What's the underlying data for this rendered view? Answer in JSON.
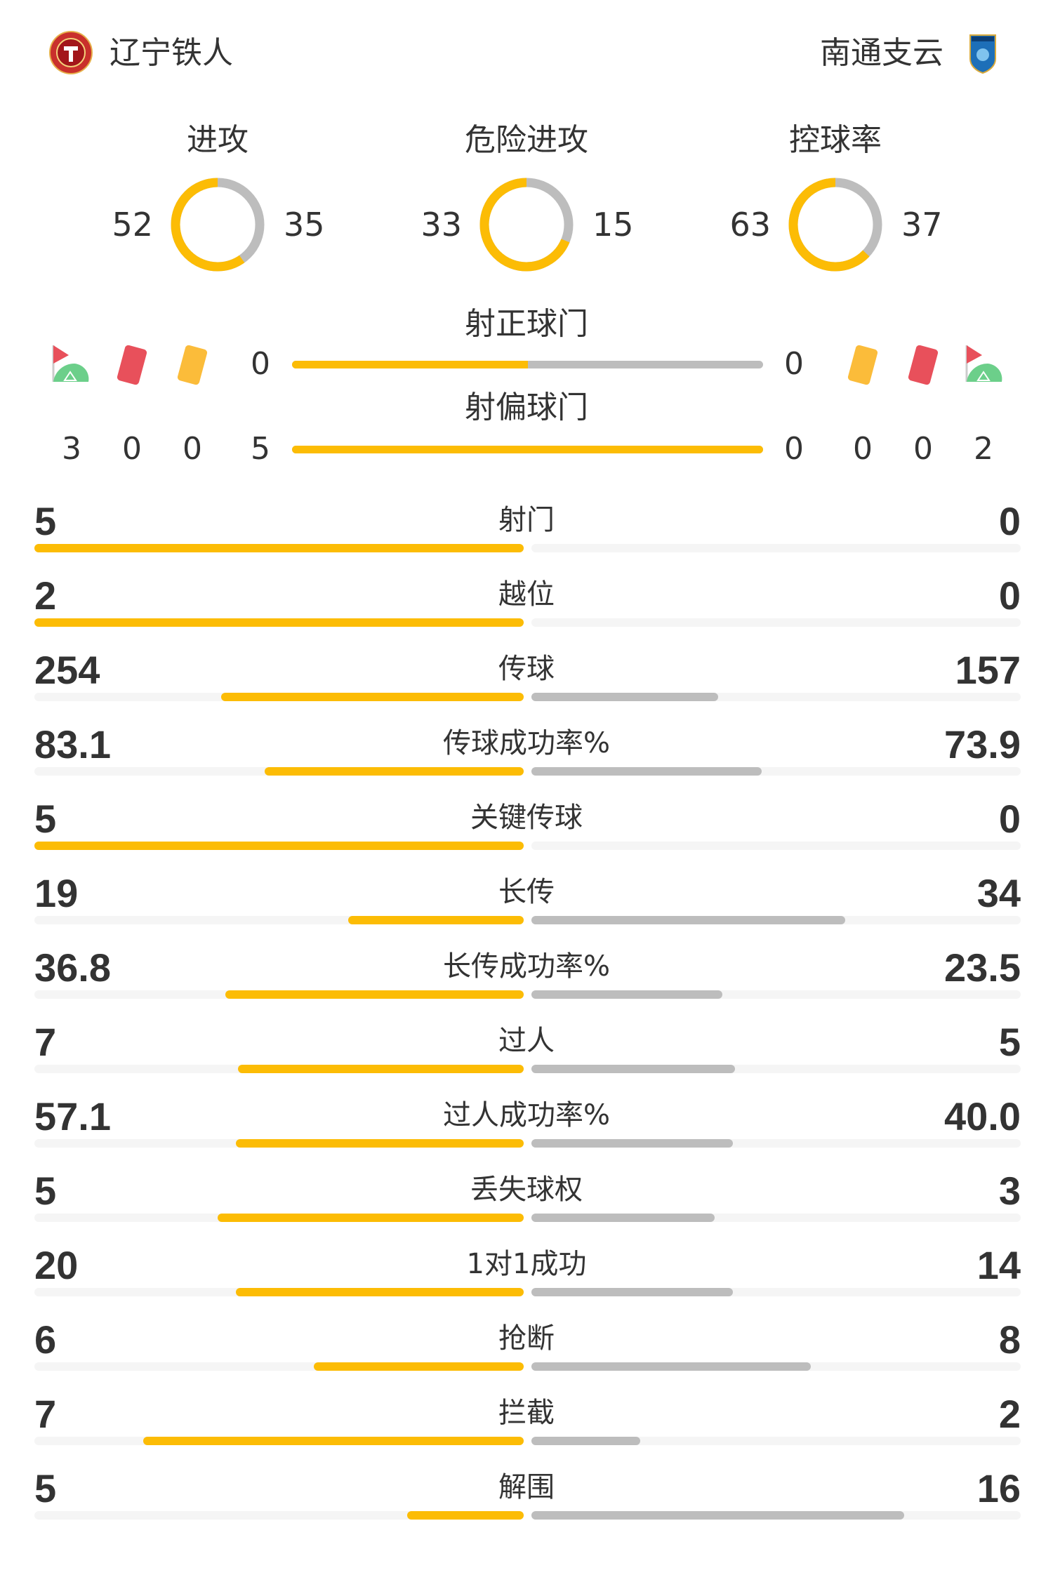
{
  "colors": {
    "home": "#fcbc05",
    "away": "#bdbdbd",
    "track": "#f5f5f5",
    "text": "#333333"
  },
  "home": {
    "name": "辽宁铁人",
    "logo_icon": "liaoning-tieren-crest"
  },
  "away": {
    "name": "南通支云",
    "logo_icon": "nantong-zhiyun-crest"
  },
  "donuts": [
    {
      "title": "进攻",
      "home": 52,
      "away": 35
    },
    {
      "title": "危险进攻",
      "home": 33,
      "away": 15
    },
    {
      "title": "控球率",
      "home": 63,
      "away": 37
    }
  ],
  "shots_on": {
    "title": "射正球门",
    "home": 0,
    "away": 0
  },
  "shots_off": {
    "title": "射偏球门",
    "home": 5,
    "away": 0
  },
  "cards": {
    "icons": [
      "corner-flag-icon",
      "red-card-icon",
      "yellow-card-icon"
    ],
    "home": {
      "corners": 3,
      "red": 0,
      "yellow": 0
    },
    "away": {
      "corners": 2,
      "red": 0,
      "yellow": 0
    }
  },
  "stats": [
    {
      "label": "射门",
      "home": "5",
      "away": "0"
    },
    {
      "label": "越位",
      "home": "2",
      "away": "0"
    },
    {
      "label": "传球",
      "home": "254",
      "away": "157"
    },
    {
      "label": "传球成功率%",
      "home": "83.1",
      "away": "73.9"
    },
    {
      "label": "关键传球",
      "home": "5",
      "away": "0"
    },
    {
      "label": "长传",
      "home": "19",
      "away": "34"
    },
    {
      "label": "长传成功率%",
      "home": "36.8",
      "away": "23.5"
    },
    {
      "label": "过人",
      "home": "7",
      "away": "5"
    },
    {
      "label": "过人成功率%",
      "home": "57.1",
      "away": "40.0"
    },
    {
      "label": "丢失球权",
      "home": "5",
      "away": "3"
    },
    {
      "label": "1对1成功",
      "home": "20",
      "away": "14"
    },
    {
      "label": "抢断",
      "home": "6",
      "away": "8"
    },
    {
      "label": "拦截",
      "home": "7",
      "away": "2"
    },
    {
      "label": "解围",
      "home": "5",
      "away": "16"
    }
  ]
}
